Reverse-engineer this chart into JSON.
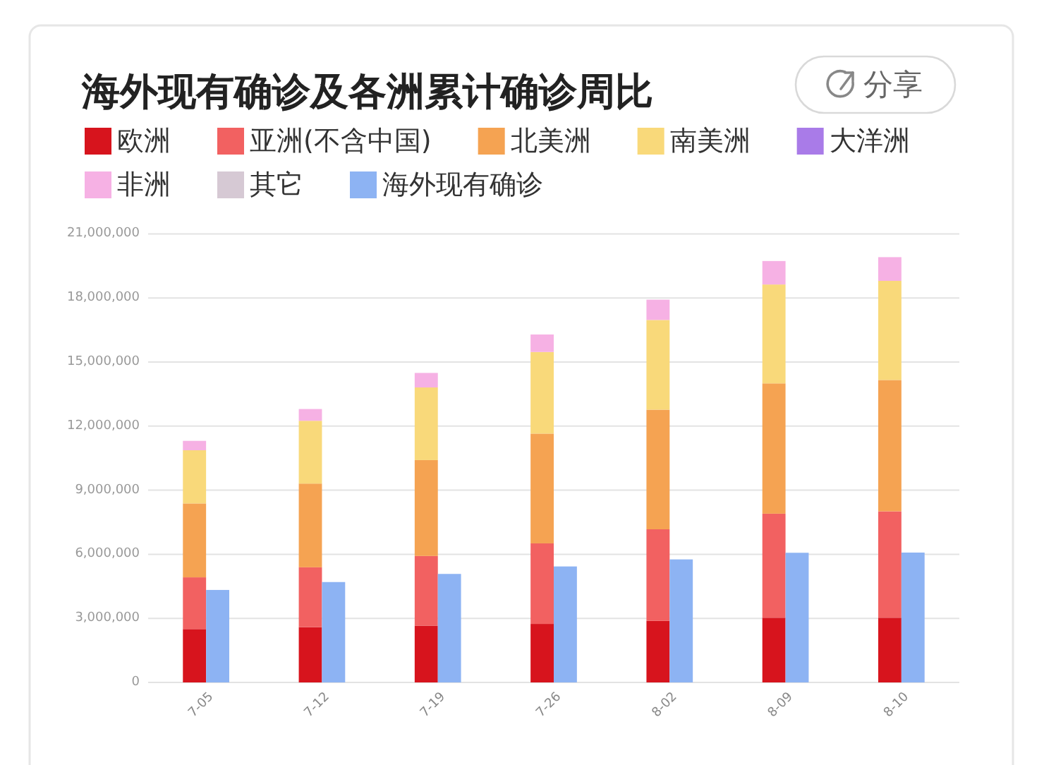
{
  "chart_data": [
    {
      "type": "bar",
      "title": "海外现有确诊及各洲累计确诊周比",
      "annotations": [
        "分享"
      ],
      "categories": [
        "7-05",
        "7-12",
        "7-19",
        "7-26",
        "8-02",
        "8-09",
        "8-10"
      ],
      "stacked": true,
      "legend": "top",
      "grid": "y",
      "ylim": [
        0,
        21000000
      ],
      "yticks": [
        {
          "value": 0,
          "label": "0"
        },
        {
          "value": 3000000,
          "label": "3,000,000"
        },
        {
          "value": 6000000,
          "label": "6,000,000"
        },
        {
          "value": 9000000,
          "label": "9,000,000"
        },
        {
          "value": 12000000,
          "label": "12,000,000"
        },
        {
          "value": 15000000,
          "label": "15,000,000"
        },
        {
          "value": 18000000,
          "label": "18,000,000"
        },
        {
          "value": 21000000,
          "label": "21,000,000"
        }
      ],
      "series": [
        {
          "name": "欧洲",
          "color": "#d7141d",
          "values": [
            2500000,
            2590000,
            2660000,
            2740000,
            2880000,
            3030000,
            3030000
          ]
        },
        {
          "name": "亚洲(不含中国)",
          "color": "#f26161",
          "values": [
            2420000,
            2800000,
            3260000,
            3770000,
            4290000,
            4870000,
            4980000
          ]
        },
        {
          "name": "北美洲",
          "color": "#f5a352",
          "values": [
            3460000,
            3920000,
            4490000,
            5140000,
            5600000,
            6100000,
            6150000
          ]
        },
        {
          "name": "南美洲",
          "color": "#f9d97a",
          "values": [
            2490000,
            2940000,
            3400000,
            3820000,
            4200000,
            4630000,
            4640000
          ]
        },
        {
          "name": "大洋洲",
          "color": "#a97be8",
          "values": [
            0,
            0,
            0,
            0,
            0,
            0,
            0
          ]
        },
        {
          "name": "非洲",
          "color": "#f6b1e4",
          "values": [
            440000,
            550000,
            680000,
            820000,
            950000,
            1100000,
            1110000
          ]
        },
        {
          "name": "其它",
          "color": "#d6c9d4",
          "values": [
            0,
            0,
            0,
            0,
            0,
            0,
            0
          ]
        }
      ]
    },
    {
      "type": "bar",
      "categories": [
        null,
        null,
        null,
        null,
        null,
        null,
        null
      ],
      "legend": "top",
      "ylim": [
        0,
        21000000
      ],
      "series": [
        {
          "name": "海外现有确诊",
          "color": "#8db3f3",
          "values": [
            4330000,
            4700000,
            5080000,
            5430000,
            5760000,
            6070000,
            6080000
          ]
        }
      ]
    }
  ]
}
